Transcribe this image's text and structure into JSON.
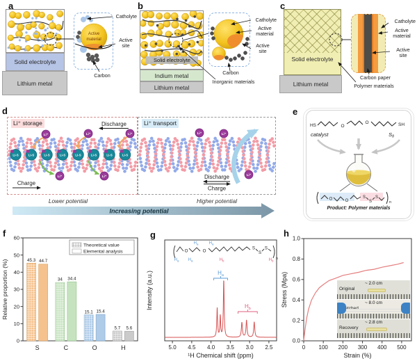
{
  "labels": {
    "a": "a",
    "b": "b",
    "c": "c",
    "d": "d",
    "e": "e",
    "f": "f",
    "g": "g",
    "h": "h"
  },
  "panel_a": {
    "solid_electrolyte": "Solid electrolyte",
    "lithium_metal": "Lithium metal",
    "catholyte": "Catholyte",
    "active_material": "Active material",
    "active_site": "Active site",
    "carbon": "Carbon"
  },
  "panel_b": {
    "solid_electrolyte": "Solid electrolyte",
    "indium_metal": "Indium metal",
    "lithium_metal": "Lithium metal",
    "catholyte": "Catholyte",
    "active_material": "Active material",
    "active_site": "Active site",
    "carbon": "Carbon",
    "inorganic_materials": "Inorganic materials"
  },
  "panel_c": {
    "solid_electrolyte": "Solid electrolyte",
    "lithium_metal": "Lithium metal",
    "catholyte": "Catholyte",
    "active_material": "Active material",
    "active_site": "Active site",
    "carbon_paper": "Carbon paper",
    "polymer_materials": "Polymer materials"
  },
  "panel_d": {
    "storage_title": "Li⁺ storage",
    "transport_title": "Li⁺ transport",
    "discharge": "Discharge",
    "charge": "Charge",
    "lower_potential": "Lower potential",
    "higher_potential": "Higher potential",
    "increasing_potential": "Increasing potential",
    "ion_label": "Li⁺",
    "helix_site_label": "Li-S"
  },
  "panel_e": {
    "hs": "HS",
    "sh": "SH",
    "o": "O",
    "s": "S",
    "catalyst": "catalyst",
    "s8_main": "S",
    "s8_sub": "8",
    "bracket_n": "n",
    "product": "Product: Polymer materials"
  },
  "panel_g_struct": {
    "h": "H",
    "sub_a": "a",
    "sub_b": "b",
    "o": "O",
    "s": "S",
    "n": "n"
  },
  "panel_h_inset": {
    "rows": [
      {
        "label": "Original",
        "length": "~ 2.0 cm"
      },
      {
        "label": "Stretched",
        "length": "~ 8.0 cm"
      },
      {
        "label": "Recovery",
        "length": "~ 2.8 cm"
      }
    ]
  },
  "chart_data": [
    {
      "id": "f",
      "type": "bar",
      "categories": [
        "S",
        "C",
        "O",
        "H"
      ],
      "series": [
        {
          "name": "Theoretical value",
          "style": "hatched",
          "values": [
            45.3,
            34,
            15.1,
            5.7
          ],
          "value_labels": [
            "45.3",
            "34",
            "15.1",
            "5.7"
          ]
        },
        {
          "name": "Elemental analysis",
          "style": "solid",
          "values": [
            44.7,
            34.4,
            15.4,
            5.6
          ],
          "value_labels": [
            "44.7",
            "34.4",
            "15.4",
            "5.6"
          ]
        }
      ],
      "group_colors": [
        "#f5c28e",
        "#c6e3bf",
        "#aecbe8",
        "#cbcbcb"
      ],
      "group_strokes": [
        "#d9a05f",
        "#8fc387",
        "#7fa8cc",
        "#9f9f9f"
      ],
      "ylabel": "Relative proportion (%)",
      "ylim": [
        0,
        60
      ],
      "yticks": [
        0,
        10,
        20,
        30,
        40,
        50,
        60
      ],
      "ytick_labels": [
        "0",
        "10",
        "20",
        "30",
        "40",
        "50",
        "60"
      ],
      "legend_position": "top-right",
      "grid": false
    },
    {
      "id": "g",
      "type": "line",
      "subtype": "nmr",
      "xlabel": "¹H Chemical shift (ppm)",
      "ylabel": "Intensity (a.u.)",
      "xlim": [
        5.2,
        2.3
      ],
      "x_reversed": true,
      "xticks": [
        5.0,
        4.5,
        4.0,
        3.5,
        3.0,
        2.5
      ],
      "xtick_labels": [
        "5.0",
        "4.5",
        "4.0",
        "3.5",
        "3.0",
        "2.5"
      ],
      "color": "#d85252",
      "peaks": [
        {
          "ppm": 3.84,
          "height": 0.51,
          "width": 0.013
        },
        {
          "ppm": 3.76,
          "height": 0.37,
          "width": 0.012
        },
        {
          "ppm": 3.67,
          "height": 1.0,
          "width": 0.013
        },
        {
          "ppm": 3.2,
          "height": 0.26,
          "width": 0.016
        },
        {
          "ppm": 3.08,
          "height": 0.3,
          "width": 0.016
        },
        {
          "ppm": 2.88,
          "height": 0.27,
          "width": 0.016
        }
      ],
      "annotations": [
        {
          "main": "H",
          "sub": "a",
          "color": "#5b9bd5",
          "span_ppm": [
            3.93,
            3.57
          ]
        },
        {
          "main": "H",
          "sub": "b",
          "color": "#e0607f",
          "span_ppm": [
            3.3,
            2.8
          ]
        }
      ]
    },
    {
      "id": "h",
      "type": "line",
      "subtype": "stress-strain",
      "xlabel": "Strain (%)",
      "ylabel": "Stress (Mpa)",
      "xlim": [
        0,
        550
      ],
      "ylim": [
        0,
        1.0
      ],
      "xticks": [
        0,
        100,
        200,
        300,
        400,
        500
      ],
      "xtick_labels": [
        "0",
        "100",
        "200",
        "300",
        "400",
        "500"
      ],
      "yticks": [
        0,
        0.2,
        0.4,
        0.6,
        0.8,
        1.0
      ],
      "ytick_labels": [
        "0.0",
        "0.2",
        "0.4",
        "0.6",
        "0.8",
        "1.0"
      ],
      "color": "#e57d7d",
      "points": [
        [
          0,
          0
        ],
        [
          3,
          0.05
        ],
        [
          8,
          0.13
        ],
        [
          15,
          0.22
        ],
        [
          25,
          0.31
        ],
        [
          40,
          0.4
        ],
        [
          60,
          0.47
        ],
        [
          80,
          0.52
        ],
        [
          100,
          0.55
        ],
        [
          130,
          0.59
        ],
        [
          160,
          0.61
        ],
        [
          200,
          0.64
        ],
        [
          240,
          0.655
        ],
        [
          280,
          0.67
        ],
        [
          320,
          0.69
        ],
        [
          360,
          0.7
        ],
        [
          400,
          0.72
        ],
        [
          440,
          0.735
        ],
        [
          480,
          0.75
        ],
        [
          510,
          0.765
        ]
      ]
    }
  ]
}
